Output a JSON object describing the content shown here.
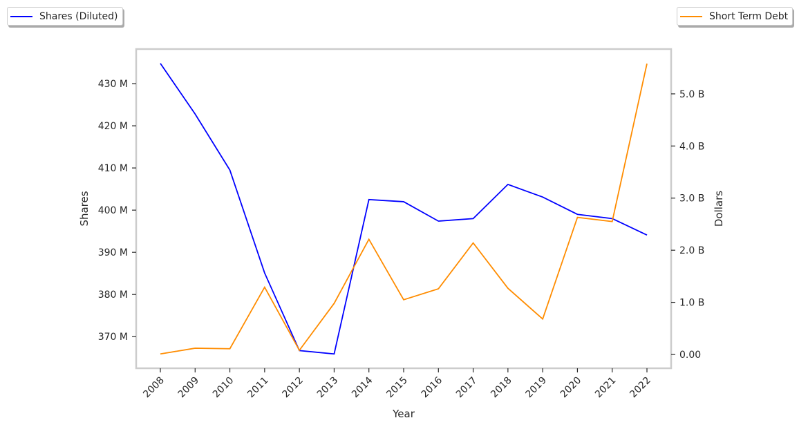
{
  "chart_data": {
    "type": "line",
    "x": [
      2008,
      2009,
      2010,
      2011,
      2012,
      2013,
      2014,
      2015,
      2016,
      2017,
      2018,
      2019,
      2020,
      2021,
      2022
    ],
    "xlabel": "Year",
    "series": [
      {
        "name": "Shares (Diluted)",
        "axis": "left",
        "color": "#0000ff",
        "values": [
          434.8,
          422.8,
          409.5,
          385.1,
          366.7,
          365.9,
          402.5,
          402.0,
          397.4,
          398.0,
          406.1,
          403.1,
          399.0,
          398.0,
          394.1
        ]
      },
      {
        "name": "Short Term Debt",
        "axis": "right",
        "color": "#ff8c00",
        "values": [
          0.01,
          0.12,
          0.11,
          1.29,
          0.08,
          0.98,
          2.21,
          1.05,
          1.26,
          2.14,
          1.27,
          0.68,
          2.63,
          2.55,
          5.58
        ]
      }
    ],
    "left_axis": {
      "label": "Shares",
      "unit": "M",
      "ylim": [
        362.5,
        438.2
      ],
      "ticks": [
        370,
        380,
        390,
        400,
        410,
        420,
        430
      ],
      "tick_labels": [
        "370 M",
        "380 M",
        "390 M",
        "400 M",
        "410 M",
        "420 M",
        "430 M"
      ]
    },
    "right_axis": {
      "label": "Dollars",
      "unit": "B",
      "ylim": [
        -0.265,
        5.86
      ],
      "ticks": [
        0,
        1,
        2,
        3,
        4,
        5
      ],
      "tick_labels": [
        "0.00",
        "1.0 B",
        "2.0 B",
        "3.0 B",
        "4.0 B",
        "5.0 B"
      ]
    },
    "grid": false,
    "legend_placement": [
      "top-left",
      "top-right"
    ]
  }
}
